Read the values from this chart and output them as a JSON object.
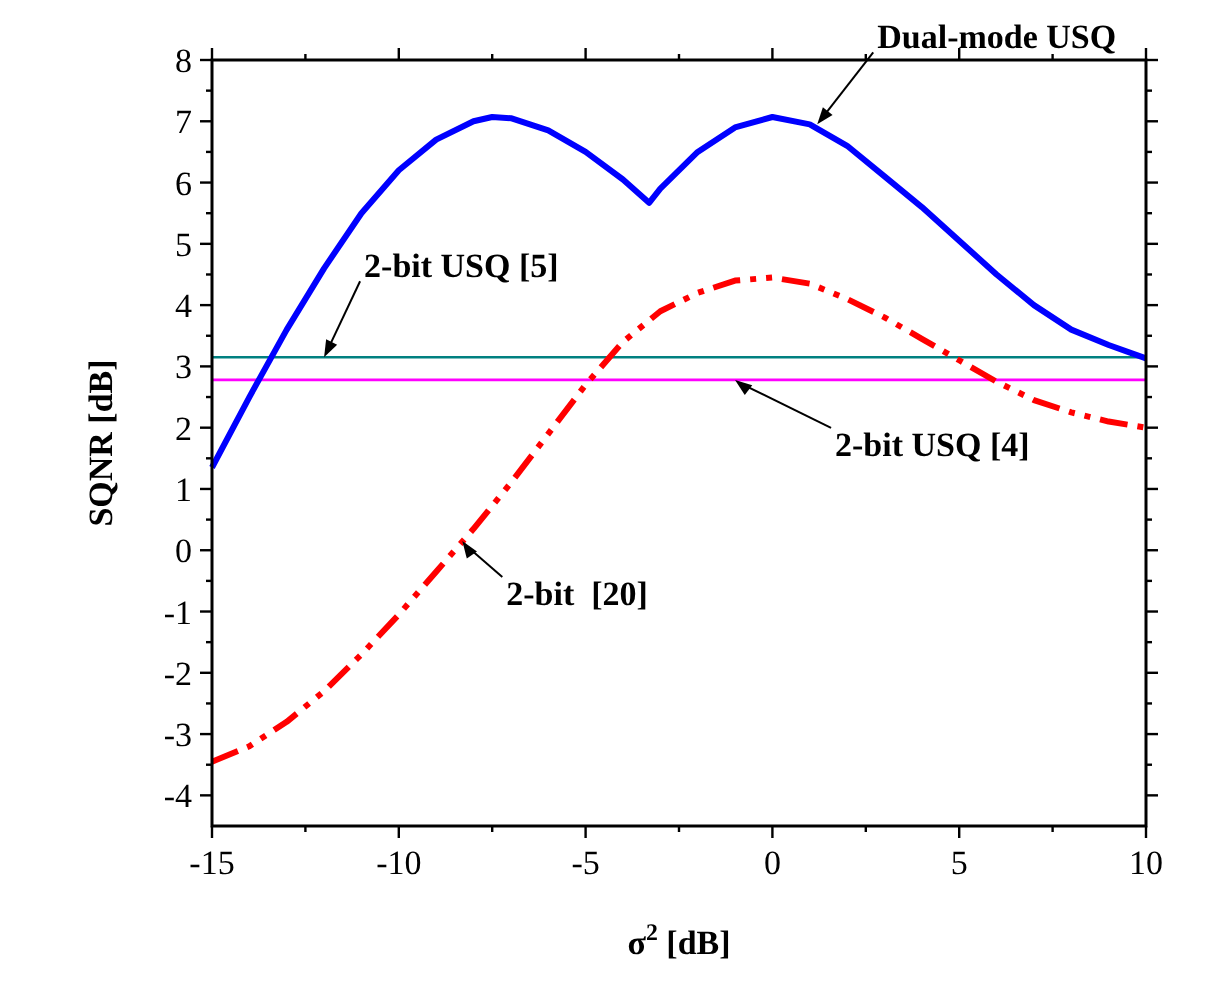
{
  "chart_data": {
    "type": "line",
    "xlabel": "σ$^{2}$ [dB]",
    "ylabel": "SQNR [dB]",
    "xlim": [
      -15,
      10
    ],
    "ylim": [
      -4.5,
      8
    ],
    "xticks": [
      -15,
      {
        "value": -12.5,
        "label": null
      },
      -10,
      {
        "value": -7.5,
        "label": null
      },
      -5,
      {
        "value": -2.5,
        "label": null
      },
      0,
      {
        "value": 2.5,
        "label": null
      },
      5,
      {
        "value": 7.5,
        "label": null
      },
      10
    ],
    "yticks": [
      -4,
      {
        "value": -3.5,
        "label": null
      },
      -3,
      {
        "value": -2.5,
        "label": null
      },
      -2,
      {
        "value": -1.5,
        "label": null
      },
      -1,
      {
        "value": -0.5,
        "label": null
      },
      0,
      {
        "value": 0.5,
        "label": null
      },
      1,
      {
        "value": 1.5,
        "label": null
      },
      2,
      {
        "value": 2.5,
        "label": null
      },
      3,
      {
        "value": 3.5,
        "label": null
      },
      4,
      {
        "value": 4.5,
        "label": null
      },
      5,
      {
        "value": 5.5,
        "label": null
      },
      6,
      {
        "value": 6.5,
        "label": null
      },
      7,
      {
        "value": 7.5,
        "label": null
      },
      8
    ],
    "grid": false,
    "marker": "none",
    "x": [
      -15,
      -14,
      -13,
      -12,
      -11,
      -10,
      -9,
      -8,
      -7,
      -6,
      -5,
      -4,
      -3,
      -2,
      -1,
      0,
      1,
      2,
      3,
      4,
      5,
      6,
      7,
      8,
      9,
      10
    ],
    "series": [
      {
        "color": "#0000ff",
        "line_style": "solid",
        "x": [
          -15,
          -14,
          -13,
          -12,
          -11,
          -10,
          -9,
          -8,
          -7.5,
          -7,
          -6,
          -5,
          -4,
          -3.3,
          -3,
          -2,
          -1,
          0,
          1,
          2,
          3,
          4,
          5,
          6,
          7,
          8,
          9,
          10
        ],
        "values": [
          1.35,
          2.5,
          3.6,
          4.6,
          5.5,
          6.2,
          6.7,
          7.0,
          7.07,
          7.05,
          6.85,
          6.5,
          6.05,
          5.67,
          5.9,
          6.5,
          6.9,
          7.07,
          6.95,
          6.6,
          6.1,
          5.6,
          5.05,
          4.5,
          4.0,
          3.6,
          3.35,
          3.13
        ]
      },
      {
        "color": "#ff0000",
        "line_style": "dashed",
        "values": [
          -3.45,
          -3.2,
          -2.8,
          -2.3,
          -1.7,
          -1.05,
          -0.35,
          0.35,
          1.1,
          1.9,
          2.7,
          3.4,
          3.9,
          4.2,
          4.4,
          4.45,
          4.35,
          4.1,
          3.8,
          3.45,
          3.1,
          2.75,
          2.45,
          2.25,
          2.1,
          2.0
        ]
      }
    ],
    "ref_lines": [
      {
        "axis": "y",
        "value": 3.15,
        "color": "#008080"
      },
      {
        "axis": "y",
        "value": 2.78,
        "color": "#ff00ff"
      }
    ],
    "annotations": [
      {
        "text": "Dual-mode USQ",
        "x": 1.2,
        "y": 6.95
      },
      {
        "text": "2-bit USQ [5]",
        "x": -12,
        "y": 3.15
      },
      {
        "text": "2-bit USQ [4]",
        "x": -1,
        "y": 2.78
      },
      {
        "text": "2-bit  [20]",
        "x": -8.3,
        "y": 0.15
      }
    ]
  }
}
